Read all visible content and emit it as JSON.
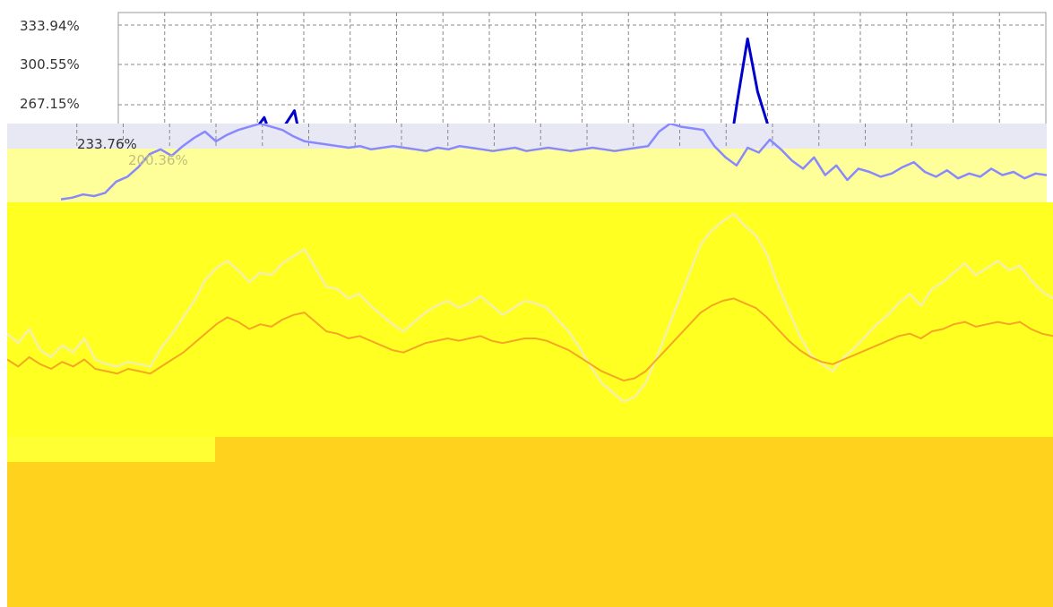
{
  "colors": {
    "series_primary": "#0000cc",
    "series_secondary": "#8888ff",
    "highlight": "#ffff22",
    "highlight_pale": "#ffff99",
    "highlight_deep": "#ffd21e",
    "orange_trace": "#f5a623",
    "band_pale": "#e8e8f4"
  },
  "chart_data": [
    {
      "type": "line",
      "title": "",
      "xlabel": "",
      "ylabel": "",
      "y_tick_labels": [
        "333.94%",
        "300.55%",
        "267.15%"
      ],
      "ylim": [
        250,
        340
      ],
      "grid": true,
      "series": [
        {
          "values": [
            250,
            250,
            251,
            251,
            252,
            252,
            253,
            251,
            252,
            255,
            262,
            278,
            286,
            270,
            281,
            290,
            262,
            256,
            258,
            255,
            258,
            257,
            256,
            258,
            257,
            259,
            256,
            255,
            257,
            258,
            256,
            255,
            257,
            258,
            256,
            257,
            255,
            256,
            257,
            256,
            255,
            256,
            258,
            257,
            256,
            255,
            256,
            257,
            255,
            256,
            257,
            256,
            255,
            256,
            258,
            257,
            255,
            256,
            258,
            296,
            332,
            301,
            282,
            268,
            262,
            258,
            257,
            255,
            256,
            257,
            258,
            256,
            255,
            257,
            256,
            258,
            257,
            256,
            255,
            257,
            258,
            256,
            257,
            255,
            256,
            257,
            258,
            256,
            255,
            257
          ]
        }
      ]
    },
    {
      "type": "line",
      "title": "",
      "xlabel": "",
      "ylabel": "",
      "y_tick_labels": [
        "233.76%",
        "200.36%"
      ],
      "ylim": [
        190,
        240
      ],
      "grid": true,
      "series": [
        {
          "values": [
            193,
            194,
            196,
            195,
            197,
            204,
            207,
            213,
            221,
            224,
            220,
            226,
            231,
            235,
            229,
            233,
            236,
            238,
            240,
            238,
            236,
            232,
            229,
            228,
            227,
            226,
            225,
            226,
            224,
            225,
            226,
            225,
            224,
            223,
            225,
            224,
            226,
            225,
            224,
            223,
            224,
            225,
            223,
            224,
            225,
            224,
            223,
            224,
            225,
            224,
            223,
            224,
            225,
            226,
            235,
            240,
            238,
            237,
            236,
            226,
            219,
            214,
            225,
            222,
            230,
            224,
            217,
            212,
            219,
            208,
            214,
            205,
            212,
            210,
            207,
            209,
            213,
            216,
            210,
            207,
            211,
            206,
            209,
            207,
            212,
            208,
            210,
            206,
            209,
            208
          ]
        }
      ]
    },
    {
      "type": "line",
      "title": "",
      "xlabel": "",
      "ylabel": "",
      "ylim": [
        0,
        100
      ],
      "grid": false,
      "series": [
        {
          "values": [
            44,
            40,
            46,
            37,
            34,
            39,
            36,
            42,
            33,
            31,
            30,
            32,
            31,
            30,
            38,
            44,
            51,
            58,
            67,
            72,
            75,
            71,
            66,
            70,
            69,
            74,
            77,
            80,
            72,
            64,
            63,
            59,
            61,
            56,
            52,
            48,
            45,
            49,
            53,
            56,
            58,
            55,
            57,
            60,
            56,
            52,
            55,
            58,
            57,
            55,
            50,
            45,
            38,
            30,
            23,
            19,
            15,
            17,
            23,
            34,
            46,
            58,
            70,
            82,
            88,
            92,
            95,
            90,
            86,
            78,
            65,
            54,
            43,
            35,
            31,
            28,
            34,
            38,
            43,
            48,
            52,
            57,
            61,
            56,
            63,
            66,
            70,
            74,
            69,
            72,
            75,
            71,
            73,
            67,
            62,
            59
          ]
        },
        {
          "values": [
            33,
            30,
            34,
            31,
            29,
            32,
            30,
            33,
            29,
            28,
            27,
            29,
            28,
            27,
            30,
            33,
            36,
            40,
            44,
            48,
            51,
            49,
            46,
            48,
            47,
            50,
            52,
            53,
            49,
            45,
            44,
            42,
            43,
            41,
            39,
            37,
            36,
            38,
            40,
            41,
            42,
            41,
            42,
            43,
            41,
            40,
            41,
            42,
            42,
            41,
            39,
            37,
            34,
            31,
            28,
            26,
            24,
            25,
            28,
            33,
            38,
            43,
            48,
            53,
            56,
            58,
            59,
            57,
            55,
            51,
            46,
            41,
            37,
            34,
            32,
            31,
            33,
            35,
            37,
            39,
            41,
            43,
            44,
            42,
            45,
            46,
            48,
            49,
            47,
            48,
            49,
            48,
            49,
            46,
            44,
            43
          ]
        }
      ]
    }
  ]
}
